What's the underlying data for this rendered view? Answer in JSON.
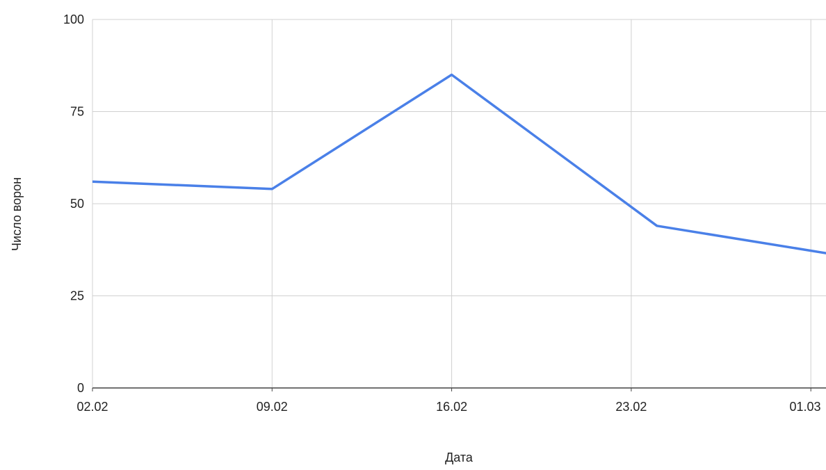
{
  "chart_data": {
    "type": "line",
    "title": "",
    "xlabel": "Дата",
    "ylabel": "Число ворон",
    "x": [
      "02.02",
      "09.02",
      "16.02",
      "23.02",
      "01.03"
    ],
    "x_ticks": [
      "02.02",
      "09.02",
      "16.02",
      "23.02",
      "01.03"
    ],
    "series": [
      {
        "name": "",
        "x": [
          "02.02",
          "09.02",
          "16.02",
          "24.02",
          "03.03"
        ],
        "values": [
          56,
          54,
          85,
          44,
          35
        ]
      }
    ],
    "ylim": [
      0,
      100
    ],
    "y_ticks": [
      0,
      25,
      50,
      75,
      100
    ],
    "grid": true,
    "legend": "none",
    "colors": {
      "line": "#4a80e8",
      "grid": "#d0d0d0",
      "axis": "#444444"
    }
  }
}
